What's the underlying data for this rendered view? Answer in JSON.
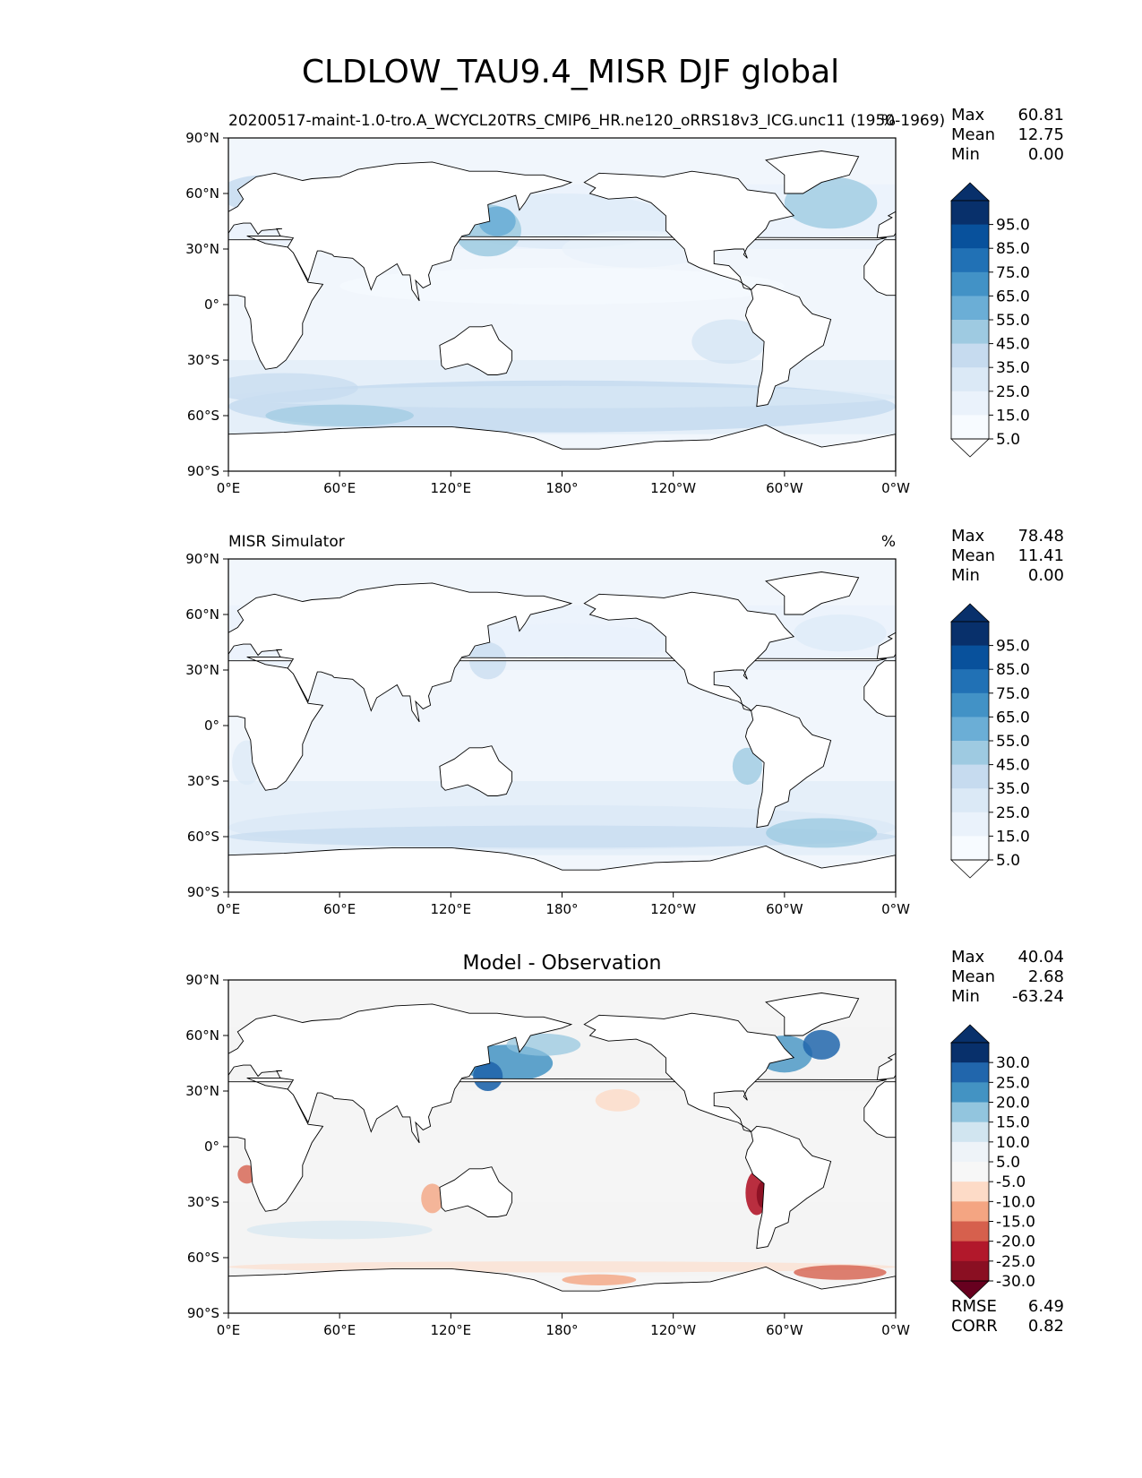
{
  "title": "CLDLOW_TAU9.4_MISR DJF global",
  "x_ticks": [
    "0°E",
    "60°E",
    "120°E",
    "180°",
    "120°W",
    "60°W",
    "0°W"
  ],
  "y_ticks": [
    "90°N",
    "60°N",
    "30°N",
    "0°",
    "30°S",
    "60°S",
    "90°S"
  ],
  "panels": [
    {
      "id": "model",
      "left_title": "20200517-maint-1.0-tro.A_WCYCL20TRS_CMIP6_HR.ne120_oRRS18v3_ICG.unc11 (1950-1969)",
      "center_title": "",
      "units": "%",
      "stats": [
        {
          "label": "Max",
          "value": "60.81"
        },
        {
          "label": "Mean",
          "value": "12.75"
        },
        {
          "label": "Min",
          "value": "0.00"
        }
      ],
      "colorbar": {
        "labels": [
          "95.0",
          "85.0",
          "75.0",
          "65.0",
          "55.0",
          "45.0",
          "35.0",
          "25.0",
          "15.0",
          "5.0"
        ],
        "colors": [
          "#08306b",
          "#08519c",
          "#2171b5",
          "#4292c6",
          "#6baed6",
          "#9ecae1",
          "#c6dbef",
          "#dbe9f6",
          "#eaf2fb",
          "#f7fbff"
        ],
        "extend_top": "#08306b",
        "extend_bottom": "#ffffff"
      }
    },
    {
      "id": "obs",
      "left_title": "MISR Simulator",
      "center_title": "",
      "units": "%",
      "stats": [
        {
          "label": "Max",
          "value": "78.48"
        },
        {
          "label": "Mean",
          "value": "11.41"
        },
        {
          "label": "Min",
          "value": "0.00"
        }
      ],
      "colorbar": {
        "labels": [
          "95.0",
          "85.0",
          "75.0",
          "65.0",
          "55.0",
          "45.0",
          "35.0",
          "25.0",
          "15.0",
          "5.0"
        ],
        "colors": [
          "#08306b",
          "#08519c",
          "#2171b5",
          "#4292c6",
          "#6baed6",
          "#9ecae1",
          "#c6dbef",
          "#dbe9f6",
          "#eaf2fb",
          "#f7fbff"
        ],
        "extend_top": "#08306b",
        "extend_bottom": "#ffffff"
      }
    },
    {
      "id": "diff",
      "left_title": "",
      "center_title": "Model - Observation",
      "units": "",
      "stats": [
        {
          "label": "Max",
          "value": "40.04"
        },
        {
          "label": "Mean",
          "value": "2.68"
        },
        {
          "label": "Min",
          "value": "-63.24"
        }
      ],
      "colorbar": {
        "labels": [
          "30.0",
          "25.0",
          "20.0",
          "15.0",
          "10.0",
          "5.0",
          "-5.0",
          "-10.0",
          "-15.0",
          "-20.0",
          "-25.0",
          "-30.0"
        ],
        "colors": [
          "#08306b",
          "#2166ac",
          "#4393c3",
          "#92c5de",
          "#d1e5f0",
          "#eef3f8",
          "#f7f7f7",
          "#fddbc7",
          "#f4a582",
          "#d6604d",
          "#b2182b",
          "#8a0f22"
        ],
        "extend_top": "#08306b",
        "extend_bottom": "#67001f"
      },
      "metrics": [
        {
          "label": "RMSE",
          "value": "6.49"
        },
        {
          "label": "CORR",
          "value": "0.82"
        }
      ]
    }
  ]
}
